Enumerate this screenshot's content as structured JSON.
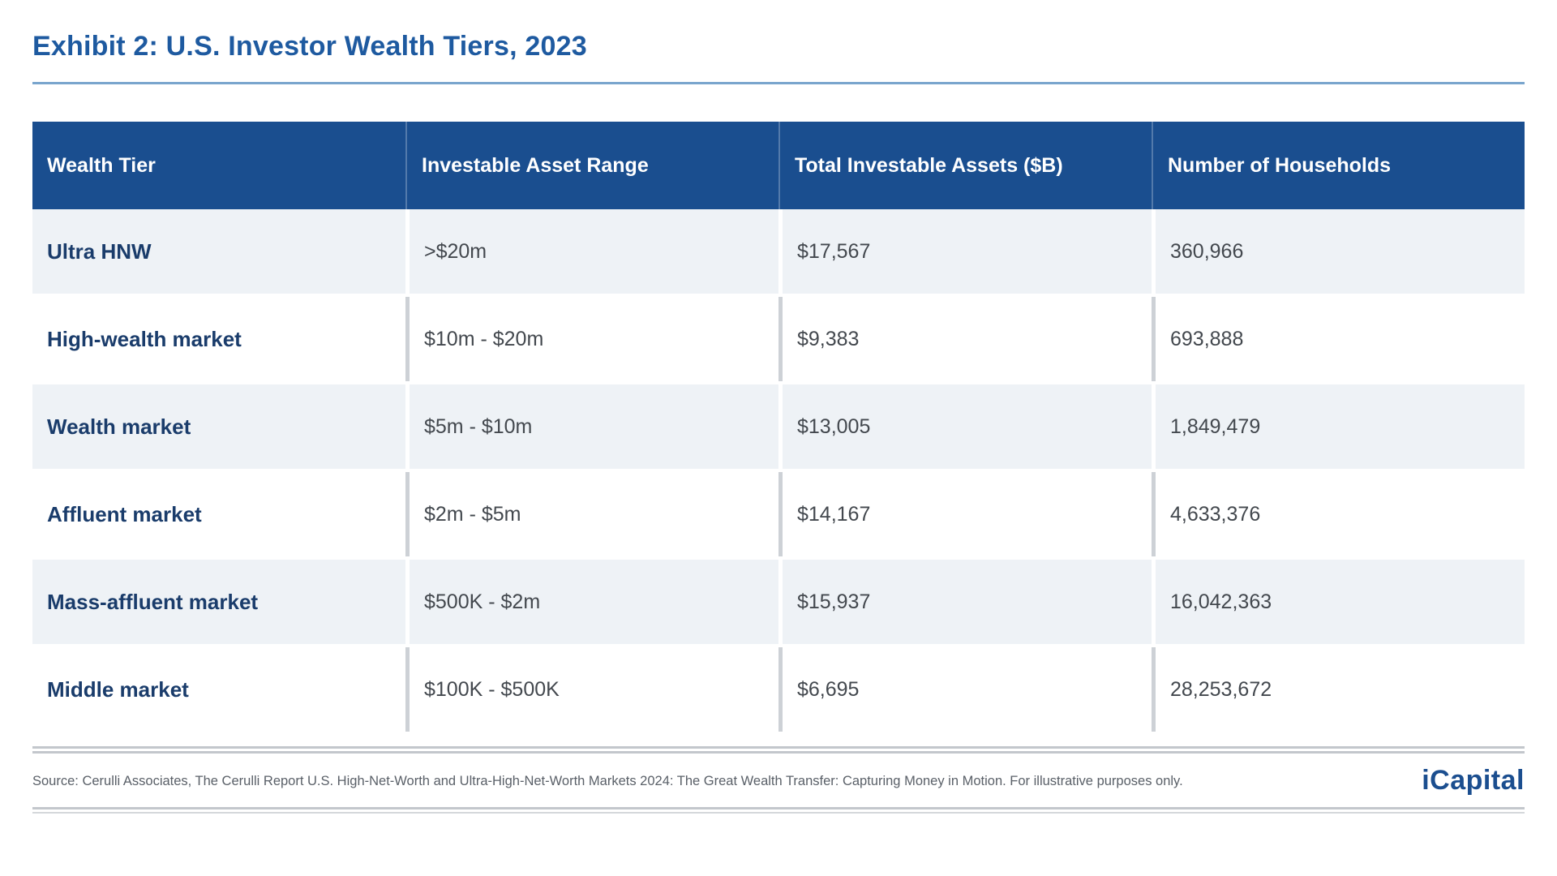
{
  "page": {
    "title": "Exhibit 2: U.S. Investor Wealth Tiers, 2023"
  },
  "footer": {
    "source": "Source: Cerulli Associates, The Cerulli Report U.S. High-Net-Worth and Ultra-High-Net-Worth Markets 2024: The Great Wealth Transfer: Capturing Money in Motion. For illustrative purposes only.",
    "brand": "iCapital"
  },
  "colors": {
    "header_blue": "#1a4e8f",
    "title_blue": "#1e5aa0",
    "tier_navy": "#1a3c6b",
    "row_light": "#eef2f6",
    "body_gray": "#43484e",
    "rule_gray": "#c3c7cc",
    "title_rule_blue": "#79a5cd"
  },
  "chart_data": {
    "type": "table",
    "title": "Exhibit 2: U.S. Investor Wealth Tiers, 2023",
    "columns": [
      "Wealth Tier",
      "Investable Asset Range",
      "Total Investable Assets ($B)",
      "Number of Households"
    ],
    "rows": [
      [
        "Ultra HNW",
        ">$20m",
        "$17,567",
        "360,966"
      ],
      [
        "High-wealth market",
        "$10m - $20m",
        "$9,383",
        "693,888"
      ],
      [
        "Wealth market",
        "$5m - $10m",
        "$13,005",
        "1,849,479"
      ],
      [
        "Affluent market",
        "$2m - $5m",
        "$14,167",
        "4,633,376"
      ],
      [
        "Mass-affluent market",
        "$500K - $2m",
        "$15,937",
        "16,042,363"
      ],
      [
        "Middle market",
        "$100K - $500K",
        "$6,695",
        "28,253,672"
      ]
    ]
  }
}
